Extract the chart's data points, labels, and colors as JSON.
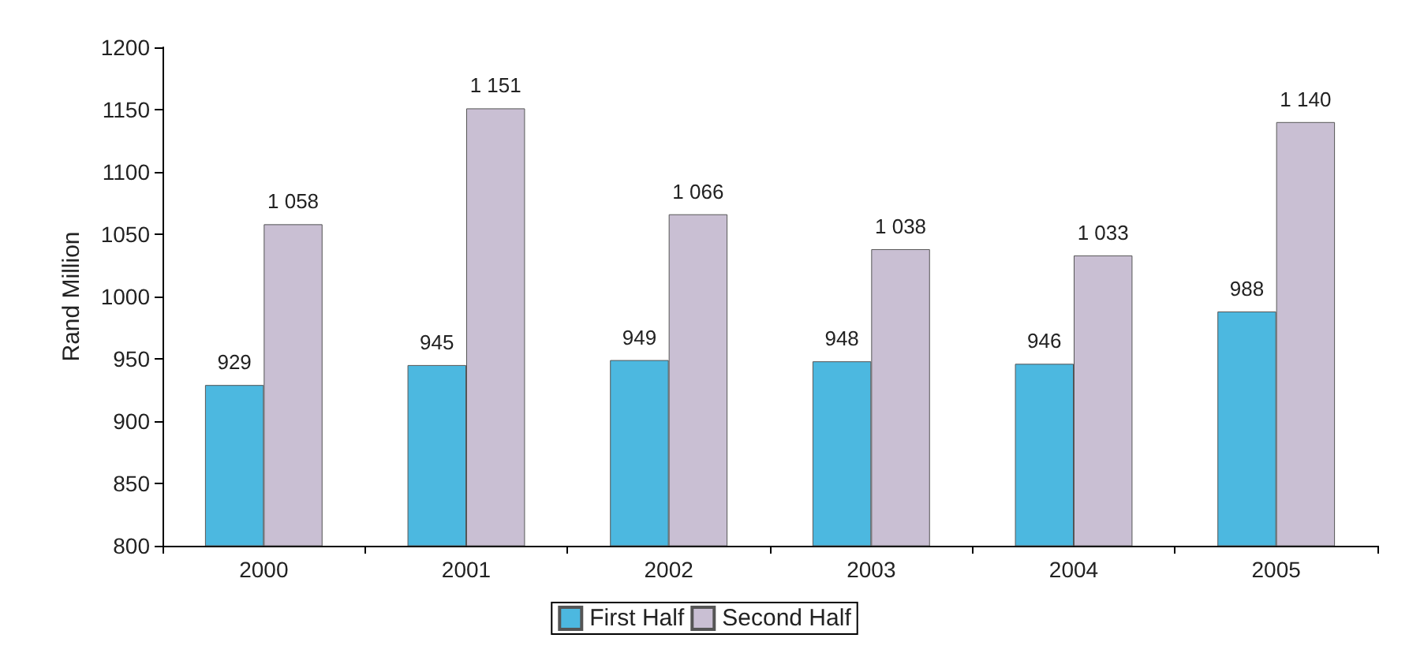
{
  "chart_data": {
    "type": "bar",
    "ylabel": "Rand Million",
    "categories": [
      "2000",
      "2001",
      "2002",
      "2003",
      "2004",
      "2005"
    ],
    "series": [
      {
        "name": "First Half",
        "color": "#4cb8e0",
        "values": [
          929,
          945,
          949,
          948,
          946,
          988
        ],
        "value_labels": [
          "929",
          "945",
          "949",
          "948",
          "946",
          "988"
        ]
      },
      {
        "name": "Second Half",
        "color": "#c9bfd3",
        "values": [
          1058,
          1151,
          1066,
          1038,
          1033,
          1140
        ],
        "value_labels": [
          "1 058",
          "1 151",
          "1 066",
          "1 038",
          "1 033",
          "1 140"
        ]
      }
    ],
    "ylim": [
      800,
      1200
    ],
    "yticks": [
      800,
      850,
      900,
      950,
      1000,
      1050,
      1100,
      1150,
      1200
    ],
    "grid": false,
    "legend": "bottom"
  }
}
